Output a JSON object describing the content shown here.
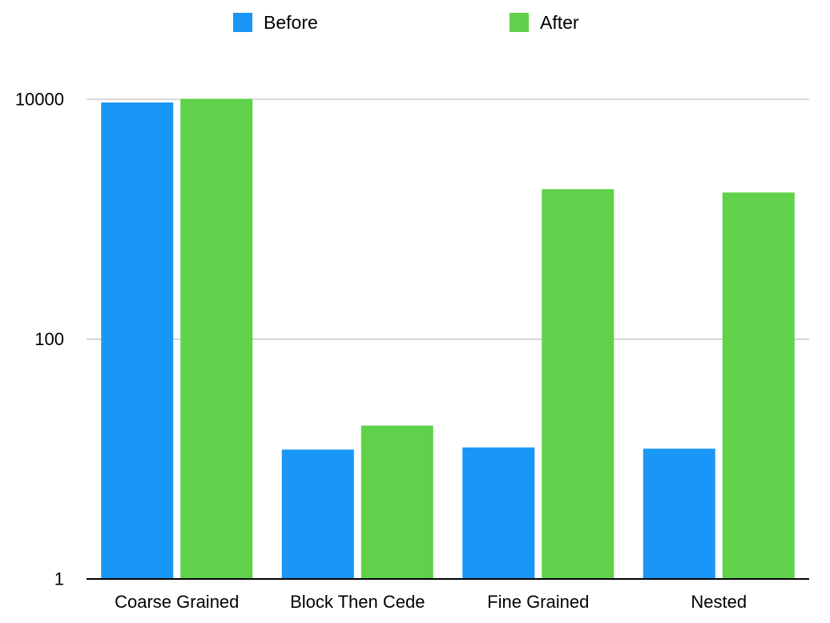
{
  "chart_data": {
    "type": "bar",
    "title": "",
    "xlabel": "",
    "ylabel": "",
    "yscale": "log",
    "ylim": [
      1,
      10000
    ],
    "yticks": [
      1,
      100,
      10000
    ],
    "grid": true,
    "legend_placement": "top",
    "categories": [
      "Coarse Grained",
      "Block Then Cede",
      "Fine Grained",
      "Nested"
    ],
    "series": [
      {
        "name": "Before",
        "color": "#1a96f7",
        "values": [
          9400,
          12,
          12.5,
          12.2
        ]
      },
      {
        "name": "After",
        "color": "#5fd14a",
        "values": [
          10100,
          19,
          1780,
          1670
        ]
      }
    ]
  }
}
